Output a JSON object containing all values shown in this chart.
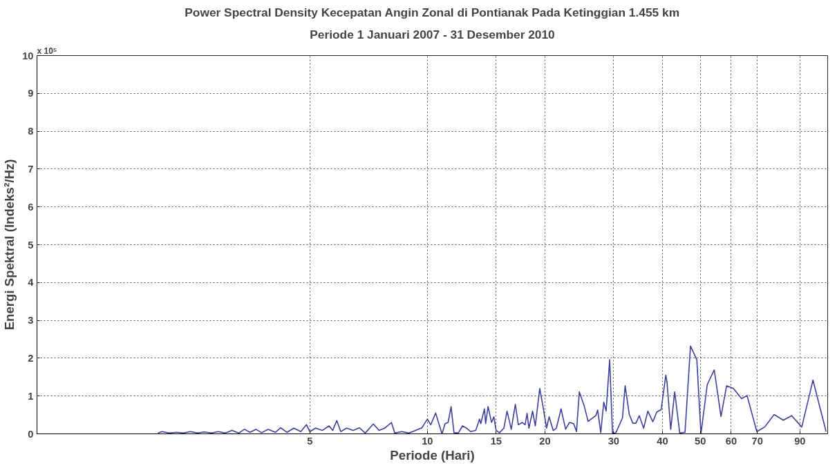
{
  "chart_data": {
    "type": "line",
    "title": "Power Spectral Density Kecepatan Angin Zonal di Pontianak Pada Ketinggian 1.455 km",
    "subtitle": "Periode 1 Januari 2007 - 31 Desember 2010",
    "xlabel": "Periode (Hari)",
    "ylabel": "Energi Spektral (Indeks²/Hz)",
    "annotations": [
      "x 10⁵"
    ],
    "log": "x",
    "grid": true,
    "marker": "none",
    "line_style": "solid",
    "xlim": [
      1,
      106
    ],
    "xticks": [
      5,
      10,
      15,
      20,
      30,
      40,
      50,
      60,
      70,
      90
    ],
    "ylim": [
      0,
      10
    ],
    "yticks": [
      0,
      1,
      2,
      3,
      4,
      5,
      6,
      7,
      8,
      9,
      10
    ],
    "series": [
      {
        "color": "#3b3f9c",
        "x": [
          2.04,
          2.09,
          2.18,
          2.28,
          2.37,
          2.47,
          2.58,
          2.68,
          2.8,
          2.91,
          3.03,
          3.16,
          3.29,
          3.4,
          3.51,
          3.64,
          3.76,
          3.91,
          4.08,
          4.21,
          4.37,
          4.55,
          4.74,
          4.9,
          5.0,
          5.17,
          5.38,
          5.6,
          5.72,
          5.86,
          6.0,
          6.21,
          6.46,
          6.7,
          6.93,
          7.27,
          7.52,
          7.77,
          8.09,
          8.25,
          8.6,
          8.96,
          9.33,
          9.68,
          10.0,
          10.2,
          10.5,
          10.7,
          10.9,
          11.1,
          11.3,
          11.5,
          11.7,
          12.0,
          12.3,
          12.6,
          12.9,
          13.3,
          13.6,
          13.7,
          14.0,
          14.1,
          14.3,
          14.6,
          14.8,
          15.0,
          15.3,
          15.7,
          16.0,
          16.4,
          16.8,
          17.1,
          17.5,
          17.8,
          18.0,
          18.2,
          18.6,
          18.9,
          19.4,
          19.8,
          20.2,
          20.5,
          21.0,
          21.4,
          22.0,
          22.6,
          23.1,
          23.7,
          24.1,
          24.5,
          25.2,
          25.8,
          27.0,
          27.3,
          27.8,
          28.3,
          28.7,
          29.3,
          29.8,
          30.4,
          31.6,
          32.1,
          32.9,
          33.6,
          34.2,
          34.9,
          35.8,
          36.7,
          37.8,
          38.7,
          39.7,
          40.8,
          41.1,
          42.0,
          43.0,
          44.3,
          45.7,
          47.2,
          49.0,
          50.2,
          52.1,
          54.3,
          56.5,
          58.4,
          60.8,
          63.8,
          65.9,
          69.8,
          73.1,
          77.3,
          81.6,
          85.7,
          91.0,
          97.2,
          105
        ],
        "values": [
          0.02,
          0.06,
          0.02,
          0.04,
          0.02,
          0.06,
          0.02,
          0.05,
          0.02,
          0.06,
          0.02,
          0.09,
          0.02,
          0.12,
          0.04,
          0.12,
          0.03,
          0.12,
          0.04,
          0.16,
          0.04,
          0.15,
          0.06,
          0.24,
          0.06,
          0.15,
          0.09,
          0.21,
          0.09,
          0.35,
          0.06,
          0.15,
          0.09,
          0.16,
          0.02,
          0.26,
          0.09,
          0.15,
          0.3,
          0.02,
          0.06,
          0.02,
          0.09,
          0.16,
          0.39,
          0.24,
          0.55,
          0.27,
          0.0,
          0.27,
          0.3,
          0.72,
          0.03,
          0.02,
          0.21,
          0.15,
          0.06,
          0.09,
          0.39,
          0.27,
          0.66,
          0.27,
          0.72,
          0.3,
          0.45,
          0.09,
          0.03,
          0.15,
          0.6,
          0.12,
          0.78,
          0.24,
          0.3,
          0.24,
          0.54,
          0.15,
          0.6,
          0.21,
          1.2,
          0.69,
          0.15,
          0.45,
          0.09,
          0.15,
          0.66,
          0.12,
          0.3,
          0.27,
          0.06,
          1.11,
          0.75,
          0.33,
          0.48,
          0.63,
          0.03,
          0.84,
          0.6,
          1.96,
          0.0,
          0.03,
          0.42,
          1.27,
          0.51,
          0.28,
          0.28,
          0.48,
          0.15,
          0.6,
          0.32,
          0.58,
          0.64,
          1.55,
          1.36,
          0.12,
          1.11,
          0.02,
          0.04,
          2.32,
          1.96,
          0.0,
          1.3,
          1.69,
          0.46,
          1.27,
          1.2,
          0.93,
          1.01,
          0.06,
          0.18,
          0.51,
          0.36,
          0.48,
          0.18,
          1.42,
          0.06
        ]
      }
    ]
  }
}
